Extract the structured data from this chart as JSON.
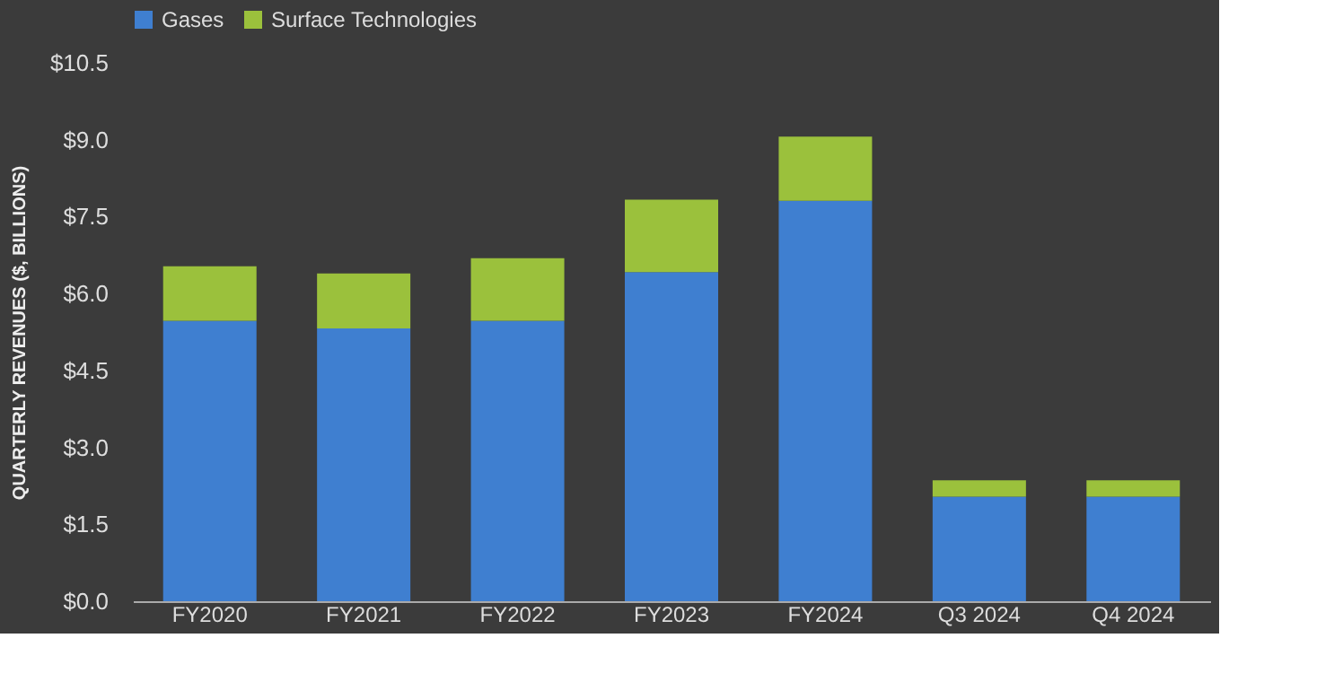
{
  "chart_data": {
    "type": "bar",
    "stacked": true,
    "ylabel": "QUARTERLY REVENUES ($, BILLIONS)",
    "categories": [
      "FY2020",
      "FY2021",
      "FY2022",
      "FY2023",
      "FY2024",
      "Q3 2024",
      "Q4 2024"
    ],
    "series": [
      {
        "name": "Gases",
        "color": "#3f7fd0",
        "values": [
          5.47,
          5.32,
          5.47,
          6.42,
          7.81,
          2.04,
          2.04
        ]
      },
      {
        "name": "Surface Technologies",
        "color": "#9bc13c",
        "values": [
          1.06,
          1.07,
          1.22,
          1.41,
          1.25,
          0.32,
          0.32
        ]
      }
    ],
    "ylim": [
      0,
      10.5
    ],
    "yticks": [
      {
        "value": 0,
        "label": "$0.0"
      },
      {
        "value": 1.5,
        "label": "$1.5"
      },
      {
        "value": 3,
        "label": "$3.0"
      },
      {
        "value": 4.5,
        "label": "$4.5"
      },
      {
        "value": 6,
        "label": "$6.0"
      },
      {
        "value": 7.5,
        "label": "$7.5"
      },
      {
        "value": 9,
        "label": "$9.0"
      },
      {
        "value": 10.5,
        "label": "$10.5"
      }
    ],
    "grid": false,
    "legend": "top"
  }
}
